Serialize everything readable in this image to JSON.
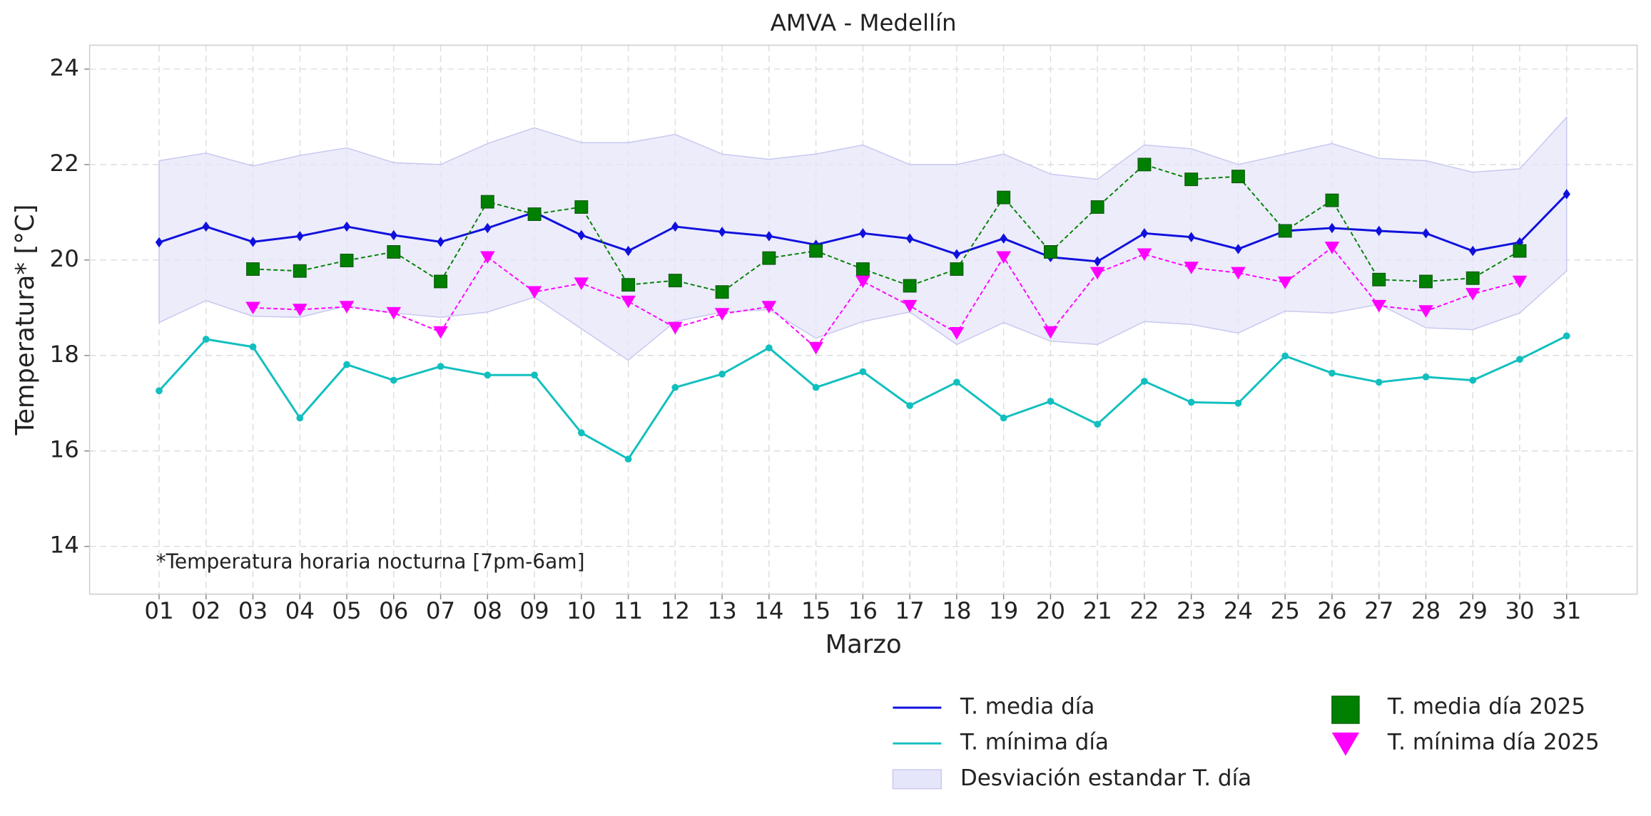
{
  "chart_data": {
    "type": "line",
    "title": "AMVA - Medellín",
    "xlabel": "Marzo",
    "ylabel": "Temperatura* [°C]",
    "annotation": "*Temperatura horaria nocturna [7pm-6am]",
    "categories": [
      "01",
      "02",
      "03",
      "04",
      "05",
      "06",
      "07",
      "08",
      "09",
      "10",
      "11",
      "12",
      "13",
      "14",
      "15",
      "16",
      "17",
      "18",
      "19",
      "20",
      "21",
      "22",
      "23",
      "24",
      "25",
      "26",
      "27",
      "28",
      "29",
      "30",
      "31"
    ],
    "ylim": [
      13,
      24.5
    ],
    "yticks": [
      14,
      16,
      18,
      20,
      22,
      24
    ],
    "grid": true,
    "legend": "lower right",
    "band": {
      "name": "Desviación estandar T. día",
      "color": "#e6e6fa",
      "upper": [
        22.08,
        22.24,
        21.97,
        22.19,
        22.35,
        22.04,
        22.0,
        22.44,
        22.77,
        22.46,
        22.46,
        22.63,
        22.22,
        22.11,
        22.22,
        22.41,
        22.0,
        22.0,
        22.22,
        21.8,
        21.69,
        22.41,
        22.33,
        22.0,
        22.22,
        22.44,
        22.13,
        22.08,
        21.84,
        21.91,
        22.99
      ],
      "lower": [
        18.69,
        19.15,
        18.82,
        18.8,
        19.04,
        18.89,
        18.8,
        18.91,
        19.22,
        18.56,
        17.9,
        18.71,
        18.91,
        18.96,
        18.36,
        18.71,
        18.91,
        18.23,
        18.69,
        18.3,
        18.23,
        18.71,
        18.65,
        18.47,
        18.93,
        18.89,
        19.07,
        18.58,
        18.54,
        18.89,
        19.77
      ]
    },
    "series": [
      {
        "name": "T. media día",
        "color": "#1010dd",
        "marker": "diamond",
        "linestyle": "solid",
        "values": [
          20.37,
          20.7,
          20.38,
          20.5,
          20.7,
          20.52,
          20.38,
          20.67,
          21.0,
          20.52,
          20.19,
          20.7,
          20.59,
          20.5,
          20.32,
          20.56,
          20.45,
          20.12,
          20.45,
          20.06,
          19.97,
          20.56,
          20.48,
          20.23,
          20.61,
          20.67,
          20.61,
          20.56,
          20.19,
          20.37,
          21.38
        ]
      },
      {
        "name": "T. mínima día",
        "color": "#12bfbf",
        "marker": "circle",
        "linestyle": "solid",
        "values": [
          17.26,
          18.34,
          18.18,
          16.69,
          17.81,
          17.48,
          17.77,
          17.59,
          17.59,
          16.38,
          15.83,
          17.33,
          17.61,
          18.16,
          17.33,
          17.66,
          16.95,
          17.44,
          16.69,
          17.04,
          16.56,
          17.46,
          17.02,
          17.0,
          17.99,
          17.63,
          17.44,
          17.55,
          17.48,
          17.92,
          18.41
        ]
      },
      {
        "name": "T. media día 2025",
        "color": "#008000",
        "marker": "square",
        "linestyle": "dashed",
        "values": [
          null,
          null,
          19.81,
          19.77,
          19.99,
          20.17,
          19.55,
          21.22,
          20.96,
          21.11,
          19.48,
          19.57,
          19.33,
          20.04,
          20.19,
          19.81,
          19.46,
          19.81,
          21.31,
          20.17,
          21.11,
          22.0,
          21.69,
          21.75,
          20.61,
          21.25,
          19.59,
          19.55,
          19.62,
          20.19,
          null
        ]
      },
      {
        "name": "T. mínima día 2025",
        "color": "#ff00ff",
        "marker": "triangle-down",
        "linestyle": "dashed",
        "values": [
          null,
          null,
          19.0,
          18.96,
          19.02,
          18.89,
          18.49,
          20.06,
          19.33,
          19.51,
          19.13,
          18.58,
          18.87,
          19.02,
          18.16,
          19.55,
          19.04,
          18.47,
          20.06,
          18.49,
          19.73,
          20.12,
          19.84,
          19.73,
          19.53,
          20.26,
          19.04,
          18.93,
          19.29,
          19.55,
          null
        ]
      }
    ]
  }
}
